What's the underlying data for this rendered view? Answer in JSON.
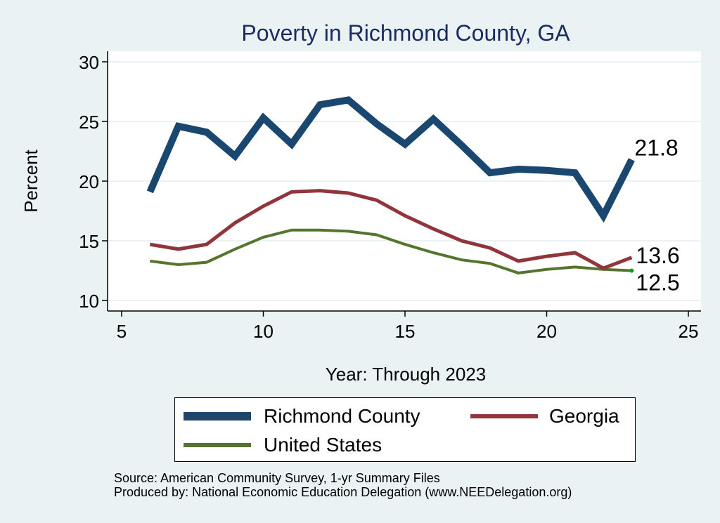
{
  "chart_data": {
    "type": "line",
    "title": "Poverty in Richmond County, GA",
    "xlabel": "Year: Through 2023",
    "ylabel": "Percent",
    "xlim": [
      5,
      25
    ],
    "ylim": [
      10,
      30
    ],
    "xticks": [
      "5",
      "10",
      "15",
      "20",
      "25"
    ],
    "yticks": [
      "10",
      "15",
      "20",
      "25",
      "30"
    ],
    "grid": true,
    "legend_position": "bottom",
    "series": [
      {
        "name": "Richmond County",
        "color": "#1a476f",
        "x": [
          6,
          7,
          8,
          9,
          10,
          11,
          12,
          13,
          14,
          15,
          16,
          17,
          18,
          19,
          20,
          21,
          22,
          23
        ],
        "values": [
          19.1,
          24.6,
          24.1,
          22.1,
          25.3,
          23.1,
          26.4,
          26.8,
          24.8,
          23.1,
          25.2,
          23.0,
          20.7,
          21.0,
          20.9,
          20.7,
          17.1,
          21.8
        ]
      },
      {
        "name": "Georgia",
        "color": "#90353b",
        "x": [
          6,
          7,
          8,
          9,
          10,
          11,
          12,
          13,
          14,
          15,
          16,
          17,
          18,
          19,
          20,
          21,
          22,
          23
        ],
        "values": [
          14.7,
          14.3,
          14.7,
          16.5,
          17.9,
          19.1,
          19.2,
          19.0,
          18.4,
          17.1,
          16.0,
          15.0,
          14.4,
          13.3,
          13.7,
          14.0,
          12.7,
          13.6
        ]
      },
      {
        "name": "United States",
        "color": "#55752f",
        "x": [
          6,
          7,
          8,
          9,
          10,
          11,
          12,
          13,
          14,
          15,
          16,
          17,
          18,
          19,
          20,
          21,
          22,
          23
        ],
        "values": [
          13.3,
          13.0,
          13.2,
          14.3,
          15.3,
          15.9,
          15.9,
          15.8,
          15.5,
          14.7,
          14.0,
          13.4,
          13.1,
          12.3,
          12.6,
          12.8,
          12.6,
          12.5
        ]
      }
    ],
    "annotations": [
      {
        "text": "21.8",
        "x": 23,
        "y": 21.8
      },
      {
        "text": "13.6",
        "x": 23,
        "y": 13.6
      },
      {
        "text": "12.5",
        "x": 23,
        "y": 12.5
      }
    ]
  },
  "footer": {
    "source": "Source: American Community Survey, 1-yr Summary Files",
    "produced_by": "Produced by: National Economic Education Delegation (www.NEEDelegation.org)"
  }
}
